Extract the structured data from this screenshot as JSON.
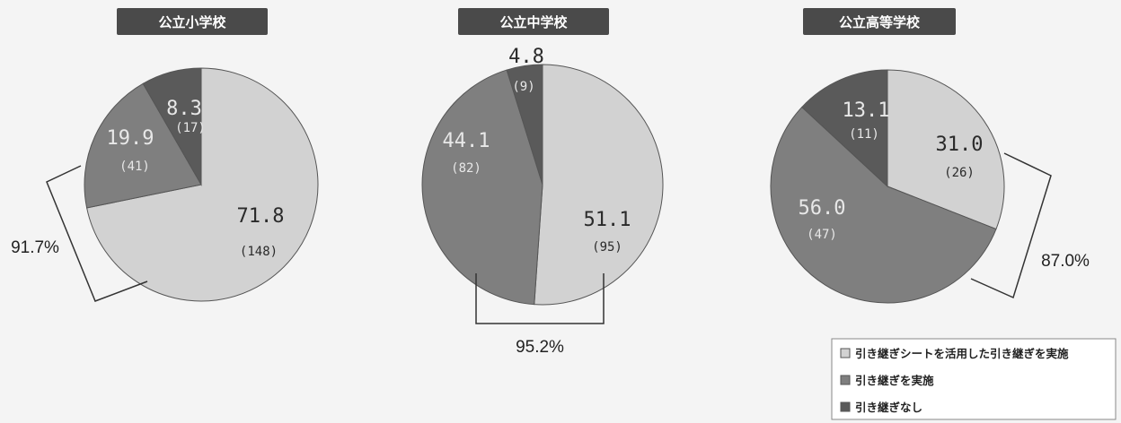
{
  "colors": {
    "shade_light": "#d2d2d2",
    "shade_mid": "#7f7f7f",
    "shade_dark": "#5a5a5a",
    "title_bg": "#4a4a4a",
    "stroke": "#555555"
  },
  "legend": {
    "items": [
      "引き継ぎシートを活用した引き継ぎを実施",
      "引き継ぎを実施",
      "引き継ぎなし"
    ]
  },
  "chart_data": [
    {
      "type": "pie",
      "title": "公立小学校",
      "slices": [
        {
          "label": "71.8",
          "count": "(148)",
          "value": 71.8,
          "shade": "light"
        },
        {
          "label": "19.9",
          "count": "(41)",
          "value": 19.9,
          "shade": "mid"
        },
        {
          "label": "8.3",
          "count": "(17)",
          "value": 8.3,
          "shade": "dark"
        }
      ],
      "bracket_label": "91.7%"
    },
    {
      "type": "pie",
      "title": "公立中学校",
      "slices": [
        {
          "label": "51.1",
          "count": "(95)",
          "value": 51.1,
          "shade": "light"
        },
        {
          "label": "44.1",
          "count": "(82)",
          "value": 44.1,
          "shade": "mid"
        },
        {
          "label": "4.8",
          "count": "(9)",
          "value": 4.8,
          "shade": "dark"
        }
      ],
      "bracket_label": "95.2%"
    },
    {
      "type": "pie",
      "title": "公立高等学校",
      "slices": [
        {
          "label": "31.0",
          "count": "(26)",
          "value": 31.0,
          "shade": "light"
        },
        {
          "label": "56.0",
          "count": "(47)",
          "value": 56.0,
          "shade": "mid"
        },
        {
          "label": "13.1",
          "count": "(11)",
          "value": 13.1,
          "shade": "dark"
        }
      ],
      "bracket_label": "87.0%"
    }
  ]
}
